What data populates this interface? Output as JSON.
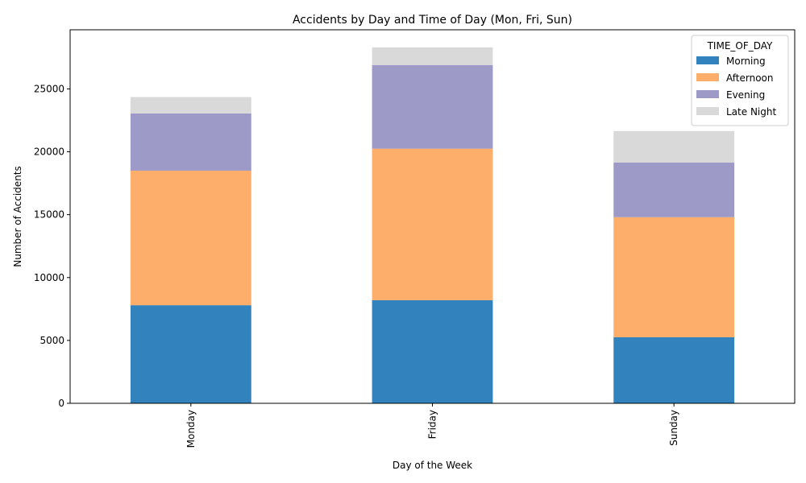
{
  "chart_data": {
    "type": "bar",
    "stacked": true,
    "title": "Accidents by Day and Time of Day (Mon, Fri, Sun)",
    "xlabel": "Day of the Week",
    "ylabel": "Number of Accidents",
    "categories": [
      "Monday",
      "Friday",
      "Sunday"
    ],
    "series": [
      {
        "name": "Morning",
        "values": [
          7800,
          8200,
          5250
        ],
        "color": "#3182bd"
      },
      {
        "name": "Afternoon",
        "values": [
          10700,
          12050,
          9550
        ],
        "color": "#fdae6b"
      },
      {
        "name": "Evening",
        "values": [
          4550,
          6650,
          4350
        ],
        "color": "#9e9ac8"
      },
      {
        "name": "Late Night",
        "values": [
          1300,
          1400,
          2500
        ],
        "color": "#d9d9d9"
      }
    ],
    "ylim": [
      0,
      29700
    ],
    "yticks": [
      0,
      5000,
      10000,
      15000,
      20000,
      25000
    ],
    "grid": false,
    "legend": {
      "title": "TIME_OF_DAY",
      "position": "top-right"
    }
  }
}
